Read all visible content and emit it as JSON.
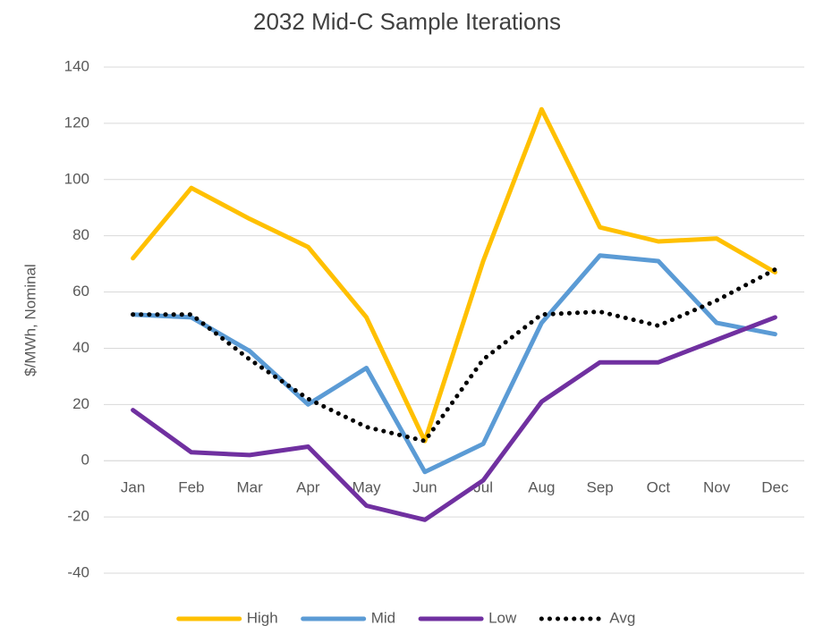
{
  "chart_data": {
    "type": "line",
    "title": "2032 Mid-C Sample Iterations",
    "y_label": "$/MWh, Nominal",
    "categories": [
      "Jan",
      "Feb",
      "Mar",
      "Apr",
      "May",
      "Jun",
      "Jul",
      "Aug",
      "Sep",
      "Oct",
      "Nov",
      "Dec"
    ],
    "series": [
      {
        "name": "High",
        "color": "#FFC000",
        "values": [
          72,
          97,
          86,
          76,
          51,
          7,
          71,
          125,
          83,
          78,
          79,
          67
        ]
      },
      {
        "name": "Mid",
        "color": "#5B9BD5",
        "values": [
          52,
          51,
          39,
          20,
          33,
          -4,
          6,
          49,
          73,
          71,
          49,
          45
        ]
      },
      {
        "name": "Low",
        "color": "#7030A0",
        "values": [
          18,
          3,
          2,
          5,
          -16,
          -21,
          -7,
          21,
          35,
          35,
          43,
          51
        ]
      },
      {
        "name": "Avg",
        "color": "#000000",
        "line_style": "dotted",
        "values": [
          52,
          52,
          36,
          22,
          12,
          7,
          36,
          52,
          53,
          48,
          57,
          68
        ]
      }
    ],
    "ylim": [
      -40,
      140
    ],
    "yticks": [
      -40,
      -20,
      0,
      20,
      40,
      60,
      80,
      100,
      120,
      140
    ],
    "grid": true,
    "legend": "bottom"
  }
}
